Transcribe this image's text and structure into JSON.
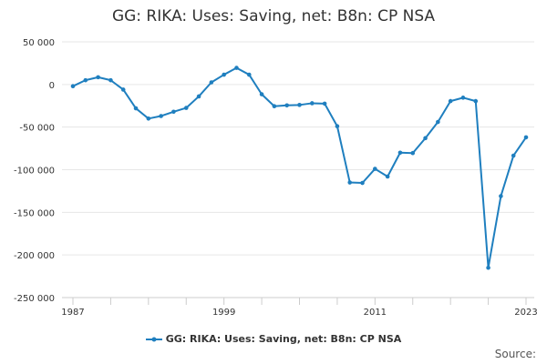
{
  "chart_data": {
    "type": "line",
    "title": "GG: RIKA: Uses: Saving, net: B8n: CP NSA",
    "xlabel": "",
    "ylabel": "",
    "x": [
      1987,
      1988,
      1989,
      1990,
      1991,
      1992,
      1993,
      1994,
      1995,
      1996,
      1997,
      1998,
      1999,
      2000,
      2001,
      2002,
      2003,
      2004,
      2005,
      2006,
      2007,
      2008,
      2009,
      2010,
      2011,
      2012,
      2013,
      2014,
      2015,
      2016,
      2017,
      2018,
      2019,
      2020,
      2021,
      2022,
      2023
    ],
    "series": [
      {
        "name": "GG: RIKA: Uses: Saving, net: B8n: CP NSA",
        "color": "#1f7fbf",
        "values": [
          -2000,
          5000,
          8500,
          5000,
          -6000,
          -28000,
          -40000,
          -37000,
          -32000,
          -27500,
          -14000,
          2500,
          11500,
          19500,
          11500,
          -11500,
          -25500,
          -24500,
          -24000,
          -22000,
          -22500,
          -49000,
          -115000,
          -115500,
          -99000,
          -108000,
          -80000,
          -80500,
          -63000,
          -44000,
          -19500,
          -15500,
          -19500,
          -215000,
          -131000,
          -83500,
          -62000
        ]
      }
    ],
    "ylim": [
      -250000,
      50000
    ],
    "y_ticks": [
      50000,
      0,
      -50000,
      -100000,
      -150000,
      -200000,
      -250000
    ],
    "y_tick_labels": [
      "50 000",
      "0",
      "-50 000",
      "-100 000",
      "-150 000",
      "-200 000",
      "-250 000"
    ],
    "x_tick_labels": [
      "1987",
      "1999",
      "2011",
      "2023"
    ],
    "grid": true,
    "legend_position": "bottom"
  },
  "legend": {
    "label": "GG: RIKA: Uses: Saving, net: B8n: CP NSA"
  },
  "footer": {
    "source_label": "Source:"
  }
}
